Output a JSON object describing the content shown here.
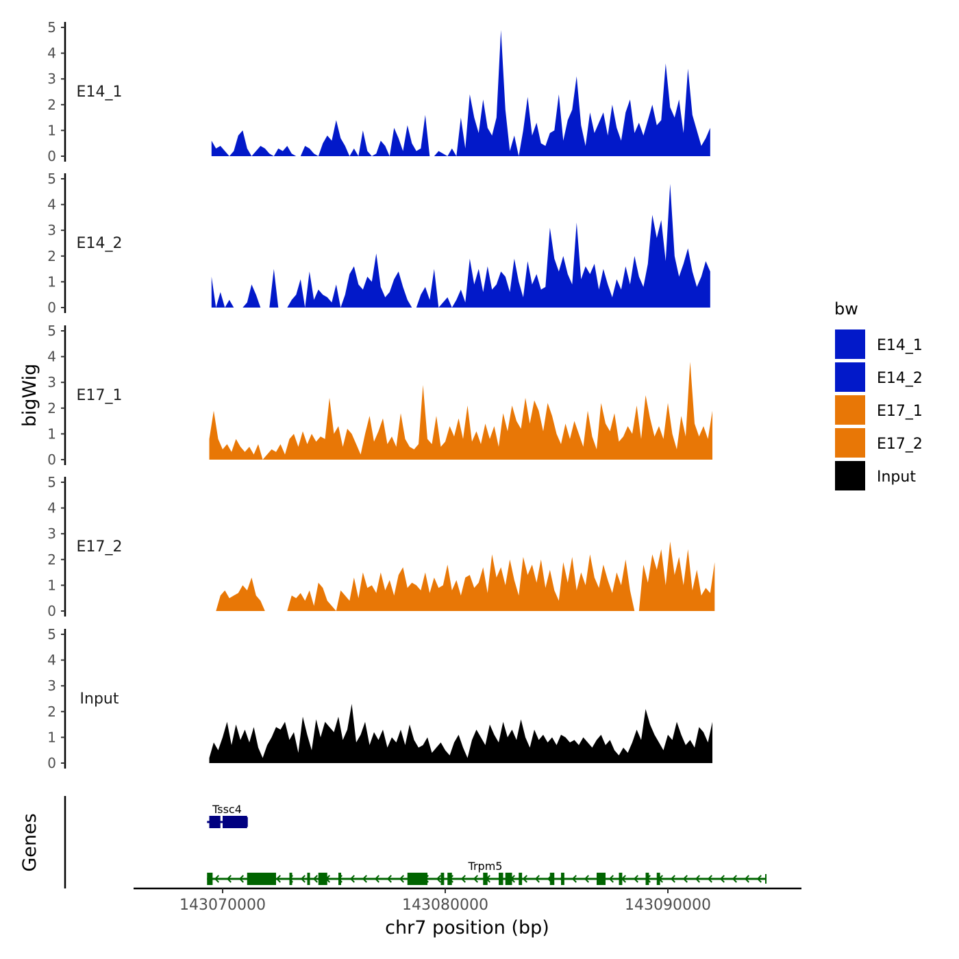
{
  "chart_data": {
    "type": "area",
    "chromosome": "chr7",
    "xlabel": "chr7 position (bp)",
    "ylabel": "bigWig",
    "gene_track_label": "Genes",
    "xlim": [
      143066000,
      143096000
    ],
    "x_ticks": [
      143070000,
      143080000,
      143090000
    ],
    "x_tick_labels": [
      "143070000",
      "143080000",
      "143090000"
    ],
    "ylim": [
      0,
      5
    ],
    "y_ticks": [
      0,
      1,
      2,
      3,
      4,
      5
    ],
    "y_tick_labels": [
      "0",
      "1",
      "2",
      "3",
      "4",
      "5"
    ],
    "series": [
      {
        "name": "E14_1",
        "color": "#0219c9",
        "x_start": 143069500,
        "step": 200,
        "values": [
          0.6,
          0.3,
          0.4,
          0.2,
          0,
          0.2,
          0.8,
          1.0,
          0.3,
          0,
          0.2,
          0.4,
          0.3,
          0.1,
          0,
          0.3,
          0.2,
          0.4,
          0.1,
          0,
          0,
          0.4,
          0.3,
          0.1,
          0,
          0.5,
          0.8,
          0.6,
          1.4,
          0.7,
          0.4,
          0,
          0.3,
          0,
          1.0,
          0.2,
          0,
          0.1,
          0.6,
          0.4,
          0,
          1.1,
          0.7,
          0.2,
          1.2,
          0.5,
          0.2,
          0.3,
          1.6,
          0,
          0,
          0.2,
          0.1,
          0,
          0.3,
          0,
          1.5,
          0.3,
          2.4,
          1.5,
          0.9,
          2.2,
          1.1,
          0.8,
          1.5,
          4.9,
          1.8,
          0.2,
          0.8,
          0,
          1.0,
          2.3,
          0.8,
          1.3,
          0.5,
          0.4,
          0.9,
          1.0,
          2.4,
          0.6,
          1.4,
          1.8,
          3.1,
          1.2,
          0.4,
          1.7,
          0.9,
          1.3,
          1.7,
          0.8,
          2.0,
          1.1,
          0.6,
          1.7,
          2.2,
          0.9,
          1.3,
          0.8,
          1.4,
          2.0,
          1.2,
          1.4,
          3.6,
          1.9,
          1.5,
          2.2,
          0.9,
          3.4,
          1.6,
          1.0,
          0.4,
          0.7,
          1.1
        ]
      },
      {
        "name": "E14_2",
        "color": "#0219c9",
        "x_start": 143069500,
        "step": 200,
        "values": [
          1.2,
          0,
          0.6,
          0,
          0.3,
          0,
          0,
          0,
          0.2,
          0.9,
          0.5,
          0,
          0,
          0,
          1.5,
          0,
          0,
          0,
          0.3,
          0.5,
          1.1,
          0,
          1.4,
          0.3,
          0.7,
          0.5,
          0.4,
          0.2,
          0.9,
          0,
          0.5,
          1.3,
          1.6,
          0.9,
          0.7,
          1.2,
          1.0,
          2.1,
          0.8,
          0.4,
          0.6,
          1.1,
          1.4,
          0.8,
          0.3,
          0,
          0,
          0.5,
          0.8,
          0.3,
          1.5,
          0,
          0.2,
          0.4,
          0,
          0.3,
          0.7,
          0.2,
          1.9,
          0.9,
          1.5,
          0.6,
          1.6,
          0.7,
          0.9,
          1.4,
          1.2,
          0.6,
          1.9,
          1.0,
          0.4,
          1.8,
          0.9,
          1.3,
          0.7,
          0.8,
          3.1,
          1.9,
          1.4,
          2.0,
          1.3,
          0.9,
          3.3,
          1.1,
          1.6,
          1.3,
          1.7,
          0.7,
          1.5,
          0.9,
          0.4,
          1.1,
          0.7,
          1.6,
          0.9,
          2.0,
          1.2,
          0.8,
          1.7,
          3.6,
          2.7,
          3.4,
          1.8,
          4.8,
          2.0,
          1.2,
          1.7,
          2.3,
          1.4,
          0.8,
          1.2,
          1.8,
          1.4
        ]
      },
      {
        "name": "E17_1",
        "color": "#e87706",
        "x_start": 143069400,
        "step": 200,
        "values": [
          0.8,
          1.9,
          0.8,
          0.4,
          0.6,
          0.3,
          0.8,
          0.5,
          0.3,
          0.5,
          0.2,
          0.6,
          0,
          0.2,
          0.4,
          0.3,
          0.6,
          0.2,
          0.8,
          1.0,
          0.5,
          1.1,
          0.6,
          1.0,
          0.7,
          0.9,
          0.8,
          2.4,
          1.0,
          1.3,
          0.5,
          1.2,
          1.0,
          0.6,
          0.2,
          1.0,
          1.7,
          0.7,
          1.1,
          1.6,
          0.6,
          0.9,
          0.5,
          1.8,
          0.8,
          0.5,
          0.4,
          0.6,
          2.9,
          0.8,
          0.6,
          1.7,
          0.5,
          0.7,
          1.3,
          0.9,
          1.6,
          0.8,
          2.1,
          0.7,
          1.1,
          0.6,
          1.4,
          0.8,
          1.3,
          0.5,
          1.8,
          1.1,
          2.1,
          1.5,
          1.2,
          2.4,
          1.4,
          2.3,
          1.9,
          1.1,
          2.2,
          1.7,
          1.0,
          0.6,
          1.4,
          0.8,
          1.5,
          1.0,
          0.5,
          1.9,
          0.9,
          0.4,
          2.2,
          1.4,
          1.1,
          1.8,
          0.7,
          0.9,
          1.3,
          1.0,
          2.1,
          0.8,
          2.5,
          1.6,
          0.9,
          1.3,
          0.8,
          2.2,
          1.0,
          0.4,
          1.7,
          0.9,
          3.8,
          1.4,
          0.9,
          1.3,
          0.8,
          1.9
        ]
      },
      {
        "name": "E17_2",
        "color": "#e87706",
        "x_start": 143069700,
        "step": 200,
        "values": [
          0,
          0.6,
          0.8,
          0.5,
          0.6,
          0.7,
          1.0,
          0.8,
          1.3,
          0.6,
          0.4,
          0,
          0,
          0,
          0,
          0,
          0,
          0.6,
          0.5,
          0.7,
          0.4,
          0.8,
          0.2,
          1.1,
          0.9,
          0.4,
          0.2,
          0,
          0.8,
          0.6,
          0.4,
          1.3,
          0.5,
          1.5,
          0.9,
          1.0,
          0.7,
          1.5,
          0.8,
          1.2,
          0.6,
          1.4,
          1.7,
          0.9,
          1.1,
          1.0,
          0.8,
          1.5,
          0.7,
          1.3,
          0.9,
          1.0,
          1.8,
          0.8,
          1.2,
          0.6,
          1.3,
          1.4,
          0.9,
          1.1,
          1.7,
          0.7,
          2.2,
          1.3,
          1.7,
          1.0,
          2.0,
          1.2,
          0.6,
          2.1,
          1.4,
          1.8,
          1.1,
          2.0,
          0.9,
          1.6,
          0.8,
          0.4,
          1.9,
          1.1,
          2.1,
          0.8,
          1.5,
          1.0,
          2.2,
          1.3,
          0.9,
          1.8,
          1.2,
          0.7,
          1.5,
          1.0,
          2.0,
          0.8,
          0,
          0,
          1.8,
          1.1,
          2.2,
          1.6,
          2.4,
          1.0,
          2.7,
          1.4,
          2.1,
          1.0,
          2.4,
          0.8,
          1.6,
          0.6,
          0.9,
          0.7,
          1.9
        ]
      },
      {
        "name": "Input",
        "color": "#000000",
        "x_start": 143069400,
        "step": 200,
        "values": [
          0.2,
          0.8,
          0.5,
          1.0,
          1.6,
          0.7,
          1.5,
          0.9,
          1.3,
          0.8,
          1.4,
          0.6,
          0.2,
          0.7,
          1.0,
          1.4,
          1.3,
          1.6,
          0.9,
          1.2,
          0.4,
          1.8,
          1.1,
          0.5,
          1.7,
          1.0,
          1.6,
          1.4,
          1.2,
          1.8,
          0.9,
          1.3,
          2.3,
          0.8,
          1.1,
          1.6,
          0.7,
          1.2,
          0.9,
          1.3,
          0.6,
          1.0,
          0.8,
          1.3,
          0.7,
          1.5,
          0.9,
          0.6,
          0.7,
          1.0,
          0.4,
          0.6,
          0.8,
          0.5,
          0.3,
          0.8,
          1.1,
          0.6,
          0.2,
          0.9,
          1.3,
          1.0,
          0.7,
          1.5,
          1.1,
          0.8,
          1.6,
          1.0,
          1.3,
          0.9,
          1.7,
          1.0,
          0.6,
          1.3,
          0.9,
          1.1,
          0.8,
          1.0,
          0.7,
          1.1,
          1.0,
          0.8,
          0.9,
          0.7,
          1.0,
          0.8,
          0.6,
          0.9,
          1.1,
          0.7,
          0.9,
          0.5,
          0.3,
          0.6,
          0.4,
          0.8,
          1.3,
          0.9,
          2.1,
          1.5,
          1.1,
          0.8,
          0.5,
          1.1,
          0.9,
          1.6,
          1.1,
          0.7,
          0.9,
          0.6,
          1.4,
          1.2,
          0.8,
          1.6
        ]
      }
    ],
    "legend": {
      "title": "bw",
      "position": "right",
      "entries": [
        "E14_1",
        "E14_2",
        "E17_1",
        "E17_2",
        "Input"
      ],
      "colors": [
        "#0219c9",
        "#0219c9",
        "#e87706",
        "#e87706",
        "#000000"
      ]
    },
    "genes": [
      {
        "name": "Tssc4",
        "color": "#000080",
        "strand": "+",
        "start": 143069300,
        "end": 143071100,
        "exons": [
          [
            143069400,
            143069900
          ],
          [
            143070000,
            143071100
          ]
        ]
      },
      {
        "name": "Trpm5",
        "color": "#006400",
        "strand": "-",
        "start": 143069300,
        "end": 143094400,
        "exons": [
          [
            143069300,
            143069550
          ],
          [
            143071100,
            143072400
          ],
          [
            143073000,
            143073100
          ],
          [
            143073800,
            143073900
          ],
          [
            143074300,
            143074700
          ],
          [
            143075200,
            143075300
          ],
          [
            143078300,
            143079200
          ],
          [
            143079800,
            143079950
          ],
          [
            143080100,
            143080300
          ],
          [
            143081700,
            143081900
          ],
          [
            143082400,
            143082600
          ],
          [
            143082700,
            143083000
          ],
          [
            143083300,
            143083450
          ],
          [
            143084700,
            143084900
          ],
          [
            143085200,
            143085350
          ],
          [
            143086800,
            143087200
          ],
          [
            143087800,
            143087950
          ],
          [
            143089000,
            143089150
          ],
          [
            143089500,
            143089650
          ]
        ]
      }
    ]
  }
}
